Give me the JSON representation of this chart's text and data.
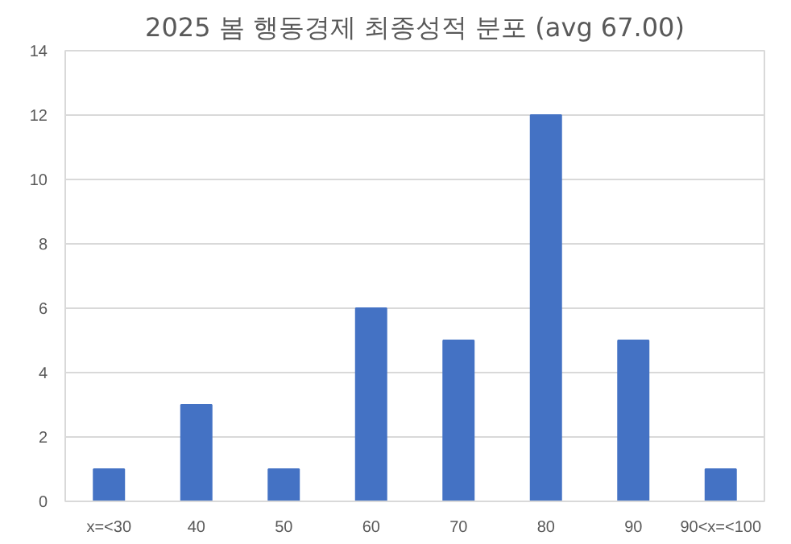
{
  "chart_data": {
    "type": "bar",
    "title": "2025 봄 행동경제 최종성적 분포 (avg 67.00)",
    "categories": [
      "x=<30",
      "40",
      "50",
      "60",
      "70",
      "80",
      "90",
      "90<x=<100"
    ],
    "values": [
      1,
      3,
      1,
      6,
      5,
      12,
      5,
      1
    ],
    "color": "#4472c4",
    "ylim": [
      0,
      14
    ],
    "yticks": [
      0,
      2,
      4,
      6,
      8,
      10,
      12,
      14
    ],
    "grid": "y"
  }
}
